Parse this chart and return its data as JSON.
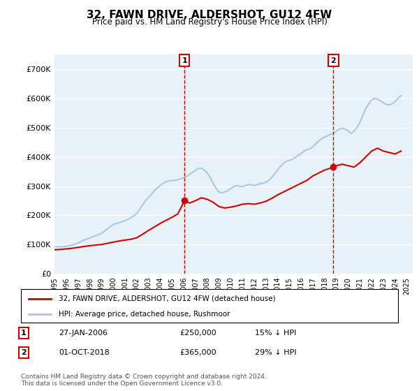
{
  "title": "32, FAWN DRIVE, ALDERSHOT, GU12 4FW",
  "subtitle": "Price paid vs. HM Land Registry's House Price Index (HPI)",
  "ylabel_ticks": [
    "£0",
    "£100K",
    "£200K",
    "£300K",
    "£400K",
    "£500K",
    "£600K",
    "£700K"
  ],
  "ylim": [
    0,
    750000
  ],
  "xlim_start": 1995.0,
  "xlim_end": 2025.5,
  "hpi_color": "#a8c8e8",
  "price_color": "#cc0000",
  "vline_color": "#cc0000",
  "bg_color": "#e8f0f8",
  "marker1_date": 2006.07,
  "marker1_price": 250000,
  "marker2_date": 2018.75,
  "marker2_price": 365000,
  "legend_property": "32, FAWN DRIVE, ALDERSHOT, GU12 4FW (detached house)",
  "legend_hpi": "HPI: Average price, detached house, Rushmoor",
  "annotation1_label": "1",
  "annotation1_text": "27-JAN-2006",
  "annotation1_price": "£250,000",
  "annotation1_pct": "15% ↓ HPI",
  "annotation2_label": "2",
  "annotation2_text": "01-OCT-2018",
  "annotation2_price": "£365,000",
  "annotation2_pct": "29% ↓ HPI",
  "footer": "Contains HM Land Registry data © Crown copyright and database right 2024.\nThis data is licensed under the Open Government Licence v3.0.",
  "hpi_data_x": [
    1995.0,
    1995.25,
    1995.5,
    1995.75,
    1996.0,
    1996.25,
    1996.5,
    1996.75,
    1997.0,
    1997.25,
    1997.5,
    1997.75,
    1998.0,
    1998.25,
    1998.5,
    1998.75,
    1999.0,
    1999.25,
    1999.5,
    1999.75,
    2000.0,
    2000.25,
    2000.5,
    2000.75,
    2001.0,
    2001.25,
    2001.5,
    2001.75,
    2002.0,
    2002.25,
    2002.5,
    2002.75,
    2003.0,
    2003.25,
    2003.5,
    2003.75,
    2004.0,
    2004.25,
    2004.5,
    2004.75,
    2005.0,
    2005.25,
    2005.5,
    2005.75,
    2006.0,
    2006.25,
    2006.5,
    2006.75,
    2007.0,
    2007.25,
    2007.5,
    2007.75,
    2008.0,
    2008.25,
    2008.5,
    2008.75,
    2009.0,
    2009.25,
    2009.5,
    2009.75,
    2010.0,
    2010.25,
    2010.5,
    2010.75,
    2011.0,
    2011.25,
    2011.5,
    2011.75,
    2012.0,
    2012.25,
    2012.5,
    2012.75,
    2013.0,
    2013.25,
    2013.5,
    2013.75,
    2014.0,
    2014.25,
    2014.5,
    2014.75,
    2015.0,
    2015.25,
    2015.5,
    2015.75,
    2016.0,
    2016.25,
    2016.5,
    2016.75,
    2017.0,
    2017.25,
    2017.5,
    2017.75,
    2018.0,
    2018.25,
    2018.5,
    2018.75,
    2019.0,
    2019.25,
    2019.5,
    2019.75,
    2020.0,
    2020.25,
    2020.5,
    2020.75,
    2021.0,
    2021.25,
    2021.5,
    2021.75,
    2022.0,
    2022.25,
    2022.5,
    2022.75,
    2023.0,
    2023.25,
    2023.5,
    2023.75,
    2024.0,
    2024.25,
    2024.5
  ],
  "hpi_data_y": [
    93000,
    92000,
    91500,
    93000,
    94000,
    96000,
    98000,
    101000,
    105000,
    110000,
    115000,
    119000,
    122000,
    126000,
    130000,
    134000,
    138000,
    145000,
    153000,
    162000,
    168000,
    172000,
    175000,
    178000,
    181000,
    186000,
    192000,
    198000,
    207000,
    220000,
    236000,
    250000,
    261000,
    272000,
    284000,
    294000,
    302000,
    310000,
    315000,
    318000,
    319000,
    320000,
    322000,
    325000,
    328000,
    333000,
    340000,
    347000,
    354000,
    360000,
    362000,
    355000,
    345000,
    330000,
    310000,
    293000,
    280000,
    277000,
    280000,
    285000,
    292000,
    298000,
    302000,
    300000,
    298000,
    302000,
    305000,
    305000,
    302000,
    305000,
    308000,
    310000,
    313000,
    320000,
    330000,
    342000,
    355000,
    368000,
    378000,
    385000,
    388000,
    392000,
    398000,
    405000,
    412000,
    420000,
    425000,
    428000,
    435000,
    445000,
    455000,
    462000,
    468000,
    472000,
    478000,
    480000,
    488000,
    495000,
    498000,
    495000,
    490000,
    480000,
    488000,
    500000,
    518000,
    542000,
    565000,
    582000,
    595000,
    600000,
    598000,
    592000,
    585000,
    580000,
    578000,
    582000,
    590000,
    600000,
    610000
  ],
  "price_data_x": [
    1995.0,
    1995.5,
    1996.0,
    1996.5,
    1997.0,
    1997.5,
    1998.0,
    1998.5,
    1999.0,
    1999.5,
    2000.0,
    2000.5,
    2001.0,
    2001.5,
    2002.0,
    2002.5,
    2003.0,
    2003.5,
    2004.0,
    2004.5,
    2005.0,
    2005.5,
    2006.07,
    2006.5,
    2007.0,
    2007.5,
    2008.0,
    2008.5,
    2009.0,
    2009.5,
    2010.0,
    2010.5,
    2011.0,
    2011.5,
    2012.0,
    2012.5,
    2013.0,
    2013.5,
    2014.0,
    2014.5,
    2015.0,
    2015.5,
    2016.0,
    2016.5,
    2017.0,
    2017.5,
    2018.0,
    2018.75,
    2019.0,
    2019.5,
    2020.0,
    2020.5,
    2021.0,
    2021.5,
    2022.0,
    2022.5,
    2023.0,
    2023.5,
    2024.0,
    2024.5
  ],
  "price_data_y": [
    82000,
    83000,
    85000,
    87000,
    90000,
    93000,
    96000,
    98000,
    100000,
    104000,
    108000,
    112000,
    115000,
    118000,
    123000,
    135000,
    148000,
    160000,
    172000,
    183000,
    193000,
    205000,
    250000,
    242000,
    250000,
    260000,
    255000,
    245000,
    230000,
    225000,
    228000,
    232000,
    238000,
    240000,
    238000,
    242000,
    248000,
    258000,
    270000,
    280000,
    290000,
    300000,
    310000,
    320000,
    335000,
    345000,
    355000,
    365000,
    370000,
    375000,
    370000,
    365000,
    380000,
    400000,
    420000,
    430000,
    420000,
    415000,
    410000,
    420000
  ]
}
